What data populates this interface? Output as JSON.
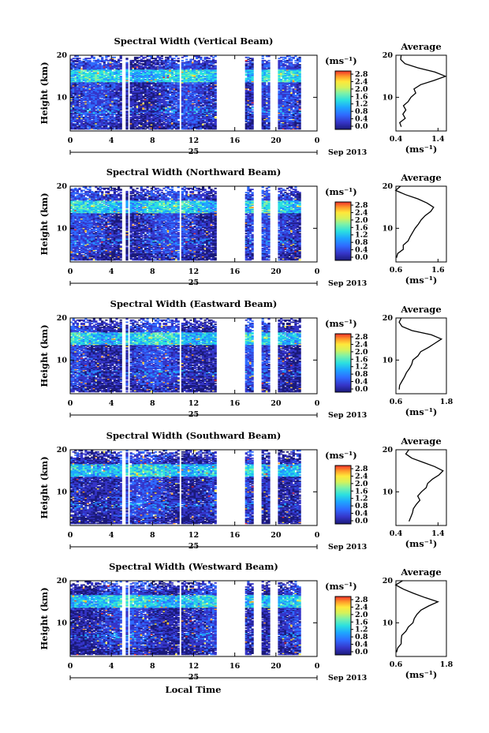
{
  "figure": {
    "xlabel": "Local Time",
    "x_ticks": [
      "0",
      "4",
      "8",
      "12",
      "16",
      "20",
      "0"
    ],
    "date_day": "25",
    "date_month_year": "Sep 2013",
    "ylabel": "Height (km)",
    "y_ticks": [
      "20",
      "10"
    ],
    "colorbar_unit": "(ms⁻¹)",
    "colorbar_ticks": [
      "2.8",
      "2.4",
      "2.0",
      "1.6",
      "1.2",
      "0.8",
      "0.4",
      "0.0"
    ],
    "average_title": "Average",
    "average_xlabel": "(ms⁻¹)",
    "colors": {
      "colormap": [
        "#1b1a7a",
        "#3535c8",
        "#2f6bff",
        "#1ea6ff",
        "#2be0e0",
        "#7ef2a8",
        "#d6f25a",
        "#ffe83a",
        "#ff9a2a",
        "#f0302a"
      ]
    }
  },
  "chart_data": [
    {
      "type": "heatmap",
      "title": "Spectral Width (Vertical Beam)",
      "x_range_hours": [
        0,
        24
      ],
      "y_range_km": [
        2,
        20
      ],
      "value_range": [
        0.0,
        2.8
      ],
      "data_gaps_hours": [
        [
          5.0,
          5.3
        ],
        [
          5.5,
          5.7
        ],
        [
          10.4,
          10.7
        ],
        [
          14.0,
          16.8
        ],
        [
          17.6,
          18.4
        ],
        [
          19.3,
          20.0
        ]
      ],
      "data_end_hours": 22.2,
      "profile": {
        "height_km": [
          3,
          4,
          5,
          6,
          7,
          8,
          9,
          10,
          11,
          12,
          13,
          14,
          15,
          16,
          17,
          18,
          19,
          20
        ],
        "width": [
          0.55,
          0.5,
          0.6,
          0.55,
          0.65,
          0.6,
          0.7,
          0.75,
          0.9,
          0.85,
          1.0,
          1.3,
          1.55,
          1.35,
          0.9,
          0.6,
          0.5,
          0.5
        ],
        "xlim": [
          0.4,
          1.6
        ],
        "x_ticks": [
          "0.4",
          "1.4"
        ]
      }
    },
    {
      "type": "heatmap",
      "title": "Spectral Width (Northward Beam)",
      "x_range_hours": [
        0,
        24
      ],
      "y_range_km": [
        2,
        20
      ],
      "value_range": [
        0.0,
        2.8
      ],
      "data_gaps_hours": [
        [
          5.0,
          5.3
        ],
        [
          5.5,
          5.7
        ],
        [
          10.4,
          10.7
        ],
        [
          14.0,
          16.8
        ],
        [
          17.6,
          18.4
        ],
        [
          19.3,
          20.0
        ]
      ],
      "data_end_hours": 22.2,
      "profile": {
        "height_km": [
          3,
          4,
          5,
          6,
          7,
          8,
          9,
          10,
          11,
          12,
          13,
          14,
          15,
          16,
          17,
          18,
          19,
          20
        ],
        "width": [
          0.6,
          0.65,
          0.75,
          0.8,
          0.9,
          0.95,
          1.0,
          1.05,
          1.15,
          1.2,
          1.3,
          1.45,
          1.5,
          1.35,
          1.1,
          0.8,
          0.6,
          0.7
        ],
        "xlim": [
          0.6,
          1.8
        ],
        "x_ticks": [
          "0.6",
          "1.6"
        ]
      }
    },
    {
      "type": "heatmap",
      "title": "Spectral Width (Eastward Beam)",
      "x_range_hours": [
        0,
        24
      ],
      "y_range_km": [
        2,
        20
      ],
      "value_range": [
        0.0,
        2.8
      ],
      "data_gaps_hours": [
        [
          5.0,
          5.3
        ],
        [
          5.5,
          5.7
        ],
        [
          10.4,
          10.7
        ],
        [
          14.0,
          16.8
        ],
        [
          17.6,
          18.4
        ],
        [
          19.3,
          20.0
        ]
      ],
      "data_end_hours": 22.2,
      "profile": {
        "height_km": [
          3,
          4,
          5,
          6,
          7,
          8,
          9,
          10,
          11,
          12,
          13,
          14,
          15,
          16,
          17,
          18,
          19,
          20
        ],
        "width": [
          0.65,
          0.7,
          0.75,
          0.8,
          0.85,
          0.95,
          1.0,
          1.0,
          1.1,
          1.2,
          1.35,
          1.5,
          1.7,
          1.45,
          1.0,
          0.75,
          0.65,
          0.7
        ],
        "xlim": [
          0.6,
          1.8
        ],
        "x_ticks": [
          "0.6",
          "1.8"
        ]
      }
    },
    {
      "type": "heatmap",
      "title": "Spectral Width (Southward Beam)",
      "x_range_hours": [
        0,
        24
      ],
      "y_range_km": [
        2,
        20
      ],
      "value_range": [
        0.0,
        2.8
      ],
      "data_gaps_hours": [
        [
          5.0,
          5.3
        ],
        [
          5.5,
          5.7
        ],
        [
          10.4,
          10.7
        ],
        [
          14.0,
          16.8
        ],
        [
          17.6,
          18.4
        ],
        [
          19.3,
          20.0
        ]
      ],
      "data_end_hours": 22.2,
      "profile": {
        "height_km": [
          3,
          4,
          5,
          6,
          7,
          8,
          9,
          10,
          11,
          12,
          13,
          14,
          15,
          16,
          17,
          18,
          19,
          20
        ],
        "width": [
          0.7,
          0.75,
          0.8,
          0.8,
          0.9,
          0.95,
          0.9,
          1.0,
          1.1,
          1.15,
          1.25,
          1.4,
          1.5,
          1.3,
          1.05,
          0.8,
          0.65,
          0.7
        ],
        "xlim": [
          0.4,
          1.6
        ],
        "x_ticks": [
          "0.4",
          "1.4"
        ]
      }
    },
    {
      "type": "heatmap",
      "title": "Spectral Width (Westward Beam)",
      "x_range_hours": [
        0,
        24
      ],
      "y_range_km": [
        2,
        20
      ],
      "value_range": [
        0.0,
        2.8
      ],
      "data_gaps_hours": [
        [
          5.0,
          5.3
        ],
        [
          5.5,
          5.7
        ],
        [
          10.4,
          10.7
        ],
        [
          14.0,
          16.8
        ],
        [
          17.6,
          18.4
        ],
        [
          19.3,
          20.0
        ]
      ],
      "data_end_hours": 22.2,
      "profile": {
        "height_km": [
          3,
          4,
          5,
          6,
          7,
          8,
          9,
          10,
          11,
          12,
          13,
          14,
          15,
          16,
          17,
          18,
          19,
          20
        ],
        "width": [
          0.6,
          0.65,
          0.7,
          0.75,
          0.75,
          0.85,
          0.9,
          1.0,
          1.05,
          1.1,
          1.2,
          1.4,
          1.6,
          1.3,
          1.0,
          0.75,
          0.6,
          0.75
        ],
        "xlim": [
          0.6,
          1.8
        ],
        "x_ticks": [
          "0.6",
          "1.8"
        ]
      }
    }
  ]
}
